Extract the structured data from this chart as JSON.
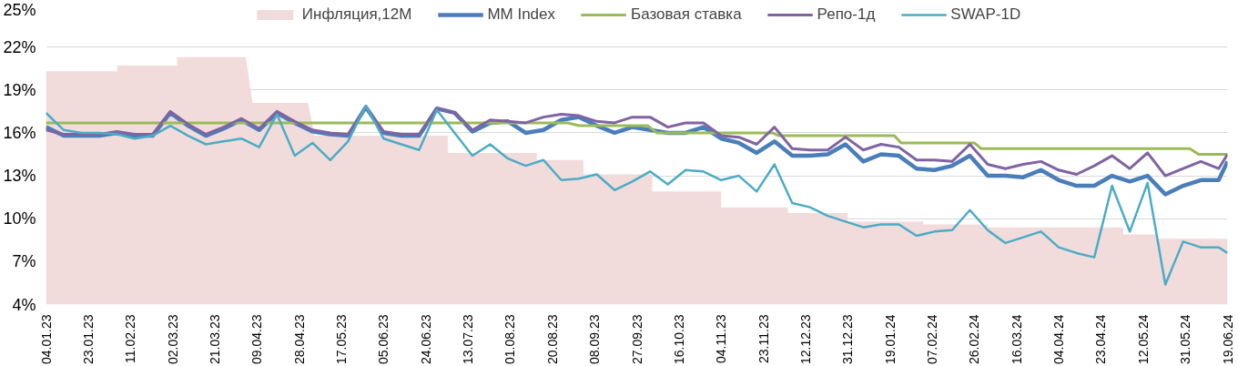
{
  "chart_data": {
    "type": "line",
    "xlim": [
      "2023-01-04",
      "2024-06-19"
    ],
    "xticks": [
      {
        "value": "2023-01-04",
        "label": "04.01.23"
      },
      {
        "value": "2023-01-23",
        "label": "23.01.23"
      },
      {
        "value": "2023-02-11",
        "label": "11.02.23"
      },
      {
        "value": "2023-03-02",
        "label": "02.03.23"
      },
      {
        "value": "2023-03-21",
        "label": "21.03.23"
      },
      {
        "value": "2023-04-09",
        "label": "09.04.23"
      },
      {
        "value": "2023-04-28",
        "label": "28.04.23"
      },
      {
        "value": "2023-05-17",
        "label": "17.05.23"
      },
      {
        "value": "2023-06-05",
        "label": "05.06.23"
      },
      {
        "value": "2023-06-24",
        "label": "24.06.23"
      },
      {
        "value": "2023-07-13",
        "label": "13.07.23"
      },
      {
        "value": "2023-08-01",
        "label": "01.08.23"
      },
      {
        "value": "2023-08-20",
        "label": "20.08.23"
      },
      {
        "value": "2023-09-08",
        "label": "08.09.23"
      },
      {
        "value": "2023-09-27",
        "label": "27.09.23"
      },
      {
        "value": "2023-10-16",
        "label": "16.10.23"
      },
      {
        "value": "2023-11-04",
        "label": "04.11.23"
      },
      {
        "value": "2023-11-23",
        "label": "23.11.23"
      },
      {
        "value": "2023-12-12",
        "label": "12.12.23"
      },
      {
        "value": "2023-12-31",
        "label": "31.12.23"
      },
      {
        "value": "2024-01-19",
        "label": "19.01.24"
      },
      {
        "value": "2024-02-07",
        "label": "07.02.24"
      },
      {
        "value": "2024-02-26",
        "label": "26.02.24"
      },
      {
        "value": "2024-03-16",
        "label": "16.03.24"
      },
      {
        "value": "2024-04-04",
        "label": "04.04.24"
      },
      {
        "value": "2024-04-23",
        "label": "23.04.24"
      },
      {
        "value": "2024-05-12",
        "label": "12.05.24"
      },
      {
        "value": "2024-05-31",
        "label": "31.05.24"
      },
      {
        "value": "2024-06-19",
        "label": "19.06.24"
      }
    ],
    "ylim": [
      4,
      25
    ],
    "yticks": [
      {
        "value": 4,
        "label": "4%"
      },
      {
        "value": 7,
        "label": "7%"
      },
      {
        "value": 10,
        "label": "10%"
      },
      {
        "value": 13,
        "label": "13%"
      },
      {
        "value": 16,
        "label": "16%"
      },
      {
        "value": 19,
        "label": "19%"
      },
      {
        "value": 22,
        "label": "22%"
      },
      {
        "value": 25,
        "label": "25%"
      }
    ],
    "grid": "y",
    "legend": "top",
    "x": [
      "2023-01-04",
      "2023-01-12",
      "2023-01-20",
      "2023-01-28",
      "2023-02-05",
      "2023-02-13",
      "2023-02-21",
      "2023-03-01",
      "2023-03-09",
      "2023-03-17",
      "2023-03-25",
      "2023-04-02",
      "2023-04-10",
      "2023-04-18",
      "2023-04-26",
      "2023-05-04",
      "2023-05-12",
      "2023-05-20",
      "2023-05-28",
      "2023-06-05",
      "2023-06-13",
      "2023-06-21",
      "2023-06-29",
      "2023-07-07",
      "2023-07-15",
      "2023-07-23",
      "2023-07-31",
      "2023-08-08",
      "2023-08-16",
      "2023-08-24",
      "2023-09-01",
      "2023-09-09",
      "2023-09-17",
      "2023-09-25",
      "2023-10-03",
      "2023-10-11",
      "2023-10-19",
      "2023-10-27",
      "2023-11-04",
      "2023-11-12",
      "2023-11-20",
      "2023-11-28",
      "2023-12-06",
      "2023-12-14",
      "2023-12-22",
      "2023-12-30",
      "2024-01-07",
      "2024-01-15",
      "2024-01-23",
      "2024-01-31",
      "2024-02-08",
      "2024-02-16",
      "2024-02-24",
      "2024-03-03",
      "2024-03-11",
      "2024-03-19",
      "2024-03-27",
      "2024-04-04",
      "2024-04-12",
      "2024-04-20",
      "2024-04-28",
      "2024-05-06",
      "2024-05-14",
      "2024-05-22",
      "2024-05-30",
      "2024-06-07",
      "2024-06-15",
      "2024-06-19"
    ],
    "series": [
      {
        "name": "Инфляция,12M",
        "type": "area",
        "color": "#f2dcdb",
        "x": [
          "2023-01-04",
          "2023-02-05",
          "2023-02-05",
          "2023-03-04",
          "2023-03-04",
          "2023-04-04",
          "2023-04-07",
          "2023-05-02",
          "2023-05-05",
          "2023-07-04",
          "2023-07-04",
          "2023-08-13",
          "2023-08-13",
          "2023-09-03",
          "2023-09-03",
          "2023-10-04",
          "2023-10-04",
          "2023-11-04",
          "2023-11-04",
          "2023-12-04",
          "2023-12-04",
          "2023-12-31",
          "2023-12-31",
          "2024-02-03",
          "2024-02-03",
          "2024-03-03",
          "2024-03-03",
          "2024-05-03",
          "2024-05-03",
          "2024-05-18",
          "2024-05-18",
          "2024-06-19"
        ],
        "values": [
          20.3,
          20.3,
          20.7,
          20.7,
          21.3,
          21.3,
          18.1,
          18.1,
          15.8,
          15.8,
          14.6,
          14.6,
          14.1,
          14.1,
          13.1,
          13.1,
          11.9,
          11.9,
          10.8,
          10.8,
          10.4,
          10.4,
          9.8,
          9.8,
          9.6,
          9.6,
          9.4,
          9.4,
          8.9,
          8.9,
          8.6,
          8.6
        ]
      },
      {
        "name": "MM Index",
        "color": "#4a7ebb",
        "values": [
          16.4,
          15.8,
          15.8,
          15.8,
          16.0,
          15.8,
          15.8,
          17.4,
          16.5,
          15.8,
          16.3,
          16.9,
          16.2,
          17.4,
          16.7,
          16.1,
          15.9,
          15.8,
          17.8,
          16.0,
          15.8,
          15.8,
          17.7,
          17.4,
          16.1,
          16.7,
          16.8,
          16.0,
          16.2,
          16.9,
          17.1,
          16.5,
          16.0,
          16.4,
          16.2,
          16.0,
          16.0,
          16.4,
          15.6,
          15.3,
          14.6,
          15.4,
          14.4,
          14.4,
          14.5,
          15.2,
          14.0,
          14.5,
          14.4,
          13.5,
          13.4,
          13.7,
          14.4,
          13.0,
          13.0,
          12.9,
          13.4,
          12.7,
          12.3,
          12.3,
          13.0,
          12.6,
          13.0,
          11.7,
          12.3,
          12.7,
          12.7,
          14.0
        ]
      },
      {
        "name": "Базовая ставка",
        "color": "#9bbb59",
        "x": [
          "2023-01-04",
          "2023-08-27",
          "2023-09-01",
          "2023-10-02",
          "2023-10-06",
          "2023-11-27",
          "2023-11-30",
          "2024-01-21",
          "2024-01-24",
          "2024-02-26",
          "2024-02-29",
          "2024-06-02",
          "2024-06-06",
          "2024-06-19"
        ],
        "values": [
          16.7,
          16.7,
          16.5,
          16.5,
          16.0,
          16.0,
          15.8,
          15.8,
          15.3,
          15.3,
          14.9,
          14.9,
          14.5,
          14.5
        ]
      },
      {
        "name": "Репо-1д",
        "color": "#8064a2",
        "values": [
          16.2,
          15.9,
          15.9,
          15.9,
          16.1,
          15.9,
          15.9,
          17.5,
          16.6,
          15.9,
          16.4,
          17.0,
          16.3,
          17.5,
          16.8,
          16.2,
          16.0,
          15.9,
          17.8,
          16.1,
          15.9,
          15.9,
          17.7,
          17.4,
          16.2,
          16.9,
          16.8,
          16.7,
          17.1,
          17.3,
          17.2,
          16.8,
          16.7,
          17.1,
          17.1,
          16.4,
          16.7,
          16.7,
          15.8,
          15.7,
          15.2,
          16.4,
          14.9,
          14.8,
          14.8,
          15.7,
          14.8,
          15.2,
          15.0,
          14.1,
          14.1,
          14.0,
          15.2,
          13.8,
          13.5,
          13.8,
          14.0,
          13.4,
          13.1,
          13.7,
          14.4,
          13.5,
          14.6,
          13.0,
          13.5,
          14.0,
          13.5,
          14.5
        ]
      },
      {
        "name": "SWAP-1D",
        "color": "#4bacc6",
        "values": [
          17.4,
          16.2,
          16.0,
          16.0,
          15.9,
          15.6,
          15.8,
          16.5,
          15.8,
          15.2,
          15.4,
          15.6,
          15.0,
          17.3,
          14.4,
          15.3,
          14.1,
          15.4,
          17.9,
          15.6,
          15.2,
          14.8,
          17.6,
          16.0,
          14.4,
          15.2,
          14.2,
          13.7,
          14.1,
          12.7,
          12.8,
          13.1,
          12.0,
          12.6,
          13.3,
          12.4,
          13.4,
          13.3,
          12.7,
          13.0,
          11.9,
          13.8,
          11.1,
          10.8,
          10.2,
          9.8,
          9.4,
          9.6,
          9.6,
          8.8,
          9.1,
          9.2,
          10.6,
          9.2,
          8.3,
          8.7,
          9.1,
          8.0,
          7.6,
          7.3,
          12.3,
          9.1,
          12.5,
          5.4,
          8.4,
          8.0,
          8.0,
          7.6
        ]
      }
    ]
  }
}
